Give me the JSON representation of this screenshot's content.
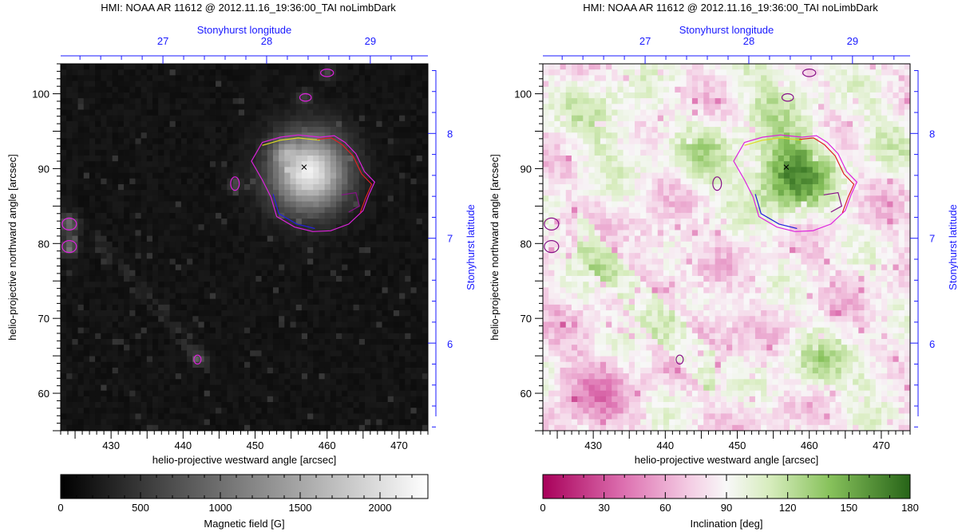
{
  "chart_data": [
    {
      "type": "heatmap",
      "title": "HMI: NOAA AR 11612 @ 2012.11.16_19:36:00_TAI noLimbDark",
      "xlabel": "helio-projective westward angle [arcsec]",
      "ylabel": "helio-projective northward angle [arcsec]",
      "x_ticks": [
        "430",
        "440",
        "450",
        "460",
        "470"
      ],
      "x_tick_values": [
        430,
        440,
        450,
        460,
        470
      ],
      "y_ticks": [
        "60",
        "70",
        "80",
        "90",
        "100"
      ],
      "y_tick_values": [
        60,
        70,
        80,
        90,
        100
      ],
      "xlim": [
        423,
        474
      ],
      "ylim": [
        55,
        104
      ],
      "top_axis_label": "Stonyhurst longitude",
      "top_ticks": [
        "27",
        "28",
        "29"
      ],
      "top_tick_positions_arcsec": [
        437.2,
        451.6,
        466.0
      ],
      "right_axis_label": "Stonyhurst latitude",
      "right_ticks": [
        "8",
        "7",
        "6"
      ],
      "right_tick_positions_arcsec": [
        94.7,
        80.7,
        66.6
      ],
      "colorbar": {
        "label": "Magnetic field [G]",
        "range": [
          0,
          2300
        ],
        "ticks": [
          "0",
          "500",
          "1000",
          "1500",
          "2000"
        ],
        "tick_values": [
          0,
          500,
          1000,
          1500,
          2000
        ],
        "colormap": "grayscale"
      },
      "features": [
        {
          "name": "sunspot",
          "x": 457,
          "y": 90,
          "peak_value": 2200
        },
        {
          "name": "pore",
          "x": 424,
          "y": 82.5,
          "peak_value": 900
        },
        {
          "name": "pore",
          "x": 424,
          "y": 79.5,
          "peak_value": 900
        },
        {
          "name": "pore",
          "x": 447,
          "y": 88,
          "peak_value": 600
        }
      ],
      "marker": {
        "symbol": "×",
        "x": 456.8,
        "y": 90.2,
        "color": "#22dddd"
      }
    },
    {
      "type": "heatmap",
      "title": "HMI: NOAA AR 11612 @ 2012.11.16_19:36:00_TAI noLimbDark",
      "xlabel": "helio-projective westward angle [arcsec]",
      "ylabel": "helio-projective northward angle [arcsec]",
      "x_ticks": [
        "430",
        "440",
        "450",
        "460",
        "470"
      ],
      "x_tick_values": [
        430,
        440,
        450,
        460,
        470
      ],
      "y_ticks": [
        "60",
        "70",
        "80",
        "90",
        "100"
      ],
      "y_tick_values": [
        60,
        70,
        80,
        90,
        100
      ],
      "xlim": [
        423,
        474
      ],
      "ylim": [
        55,
        104
      ],
      "top_axis_label": "Stonyhurst longitude",
      "top_ticks": [
        "27",
        "28",
        "29"
      ],
      "top_tick_positions_arcsec": [
        437.2,
        451.6,
        466.0
      ],
      "right_axis_label": "Stonyhurst latitude",
      "right_ticks": [
        "8",
        "7",
        "6"
      ],
      "right_tick_positions_arcsec": [
        94.7,
        80.7,
        66.6
      ],
      "colorbar": {
        "label": "Inclination [deg]",
        "range": [
          0,
          180
        ],
        "ticks": [
          "0",
          "30",
          "60",
          "90",
          "120",
          "150",
          "180"
        ],
        "tick_values": [
          0,
          30,
          60,
          90,
          120,
          150,
          180
        ],
        "colormap": "pink-white-green"
      },
      "features": [
        {
          "name": "sunspot",
          "x": 457,
          "y": 90,
          "peak_value": 170
        },
        {
          "name": "green-band",
          "x": 438,
          "y": 70,
          "peak_value": 140
        },
        {
          "name": "pink-patch",
          "x": 445,
          "y": 68,
          "peak_value": 60
        }
      ],
      "marker": {
        "symbol": "×",
        "x": 456.8,
        "y": 90.2,
        "color": "#22dddd"
      }
    }
  ],
  "colors": {
    "axis_blue": "#1a1aff",
    "contour_magenta": "#dd22dd",
    "contour_red": "#dd2222",
    "contour_yellow": "#dddd22",
    "contour_blue": "#2222dd",
    "contour_purple": "#881188",
    "marker_cyan": "#22dddd"
  }
}
